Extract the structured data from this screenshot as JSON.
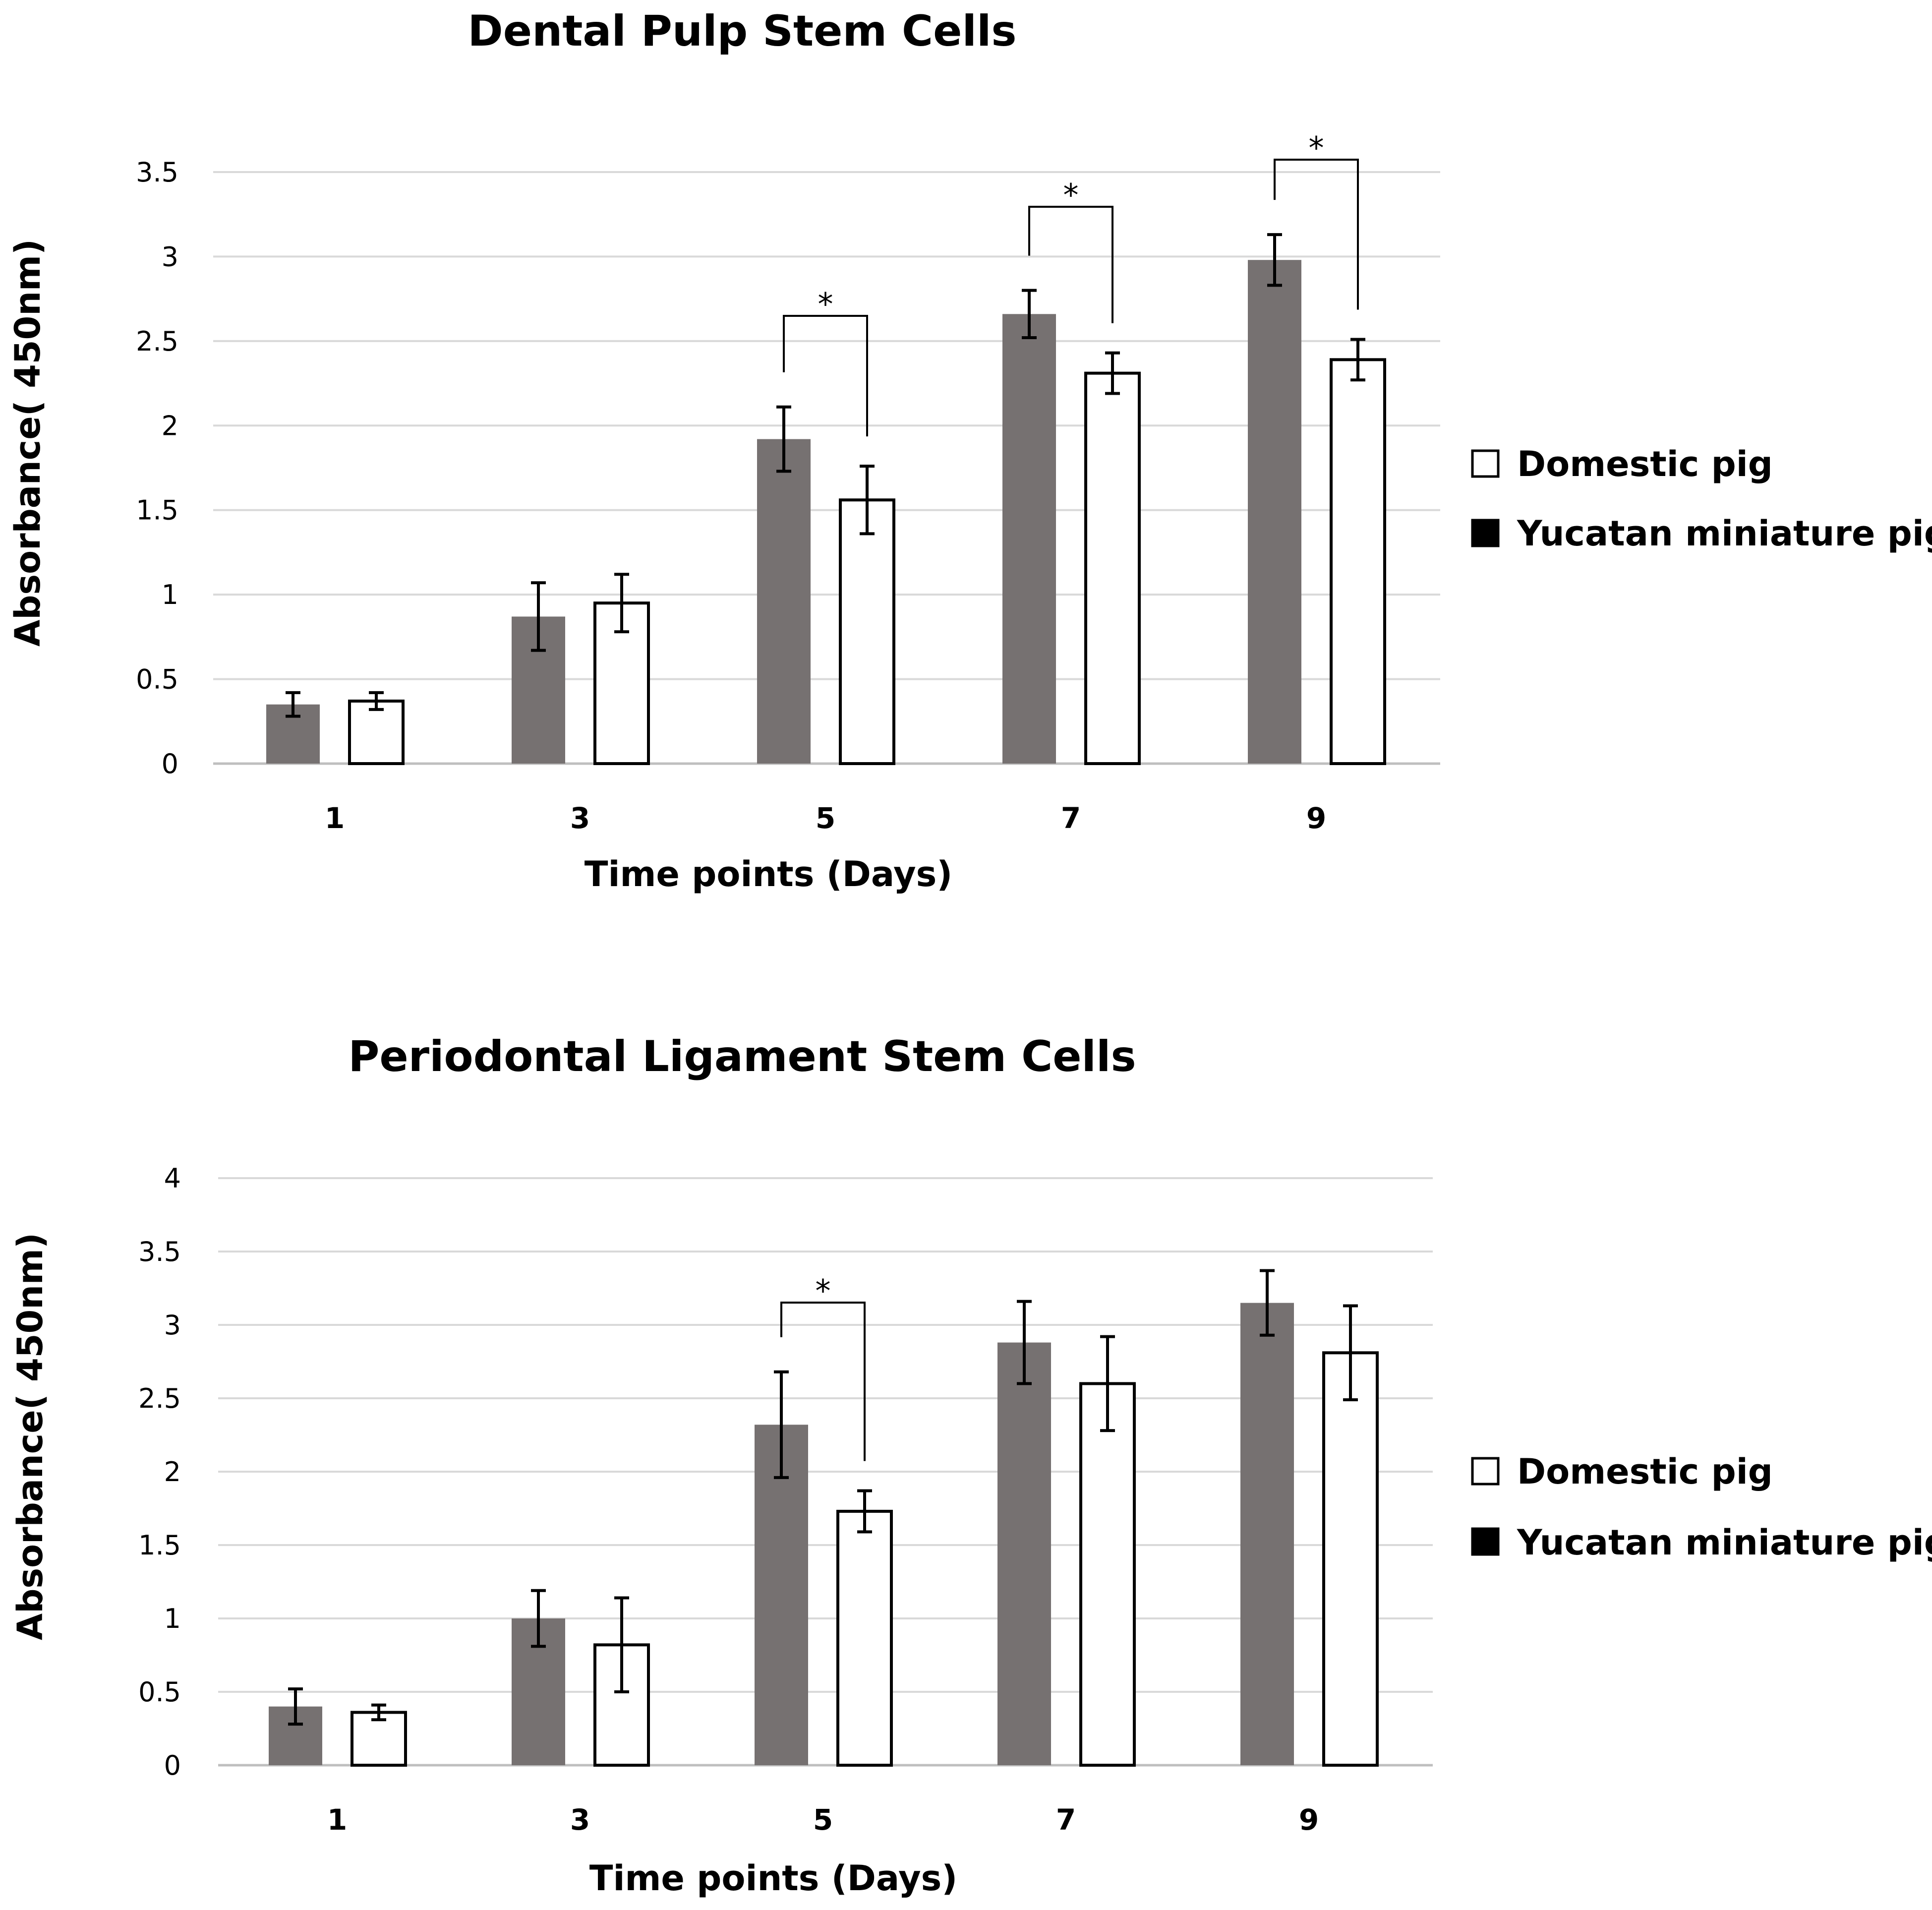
{
  "chart_data": [
    {
      "type": "bar",
      "title": "Dental Pulp Stem Cells",
      "xlabel": "Time points (Days)",
      "ylabel": "Absorbance( 450nm)",
      "categories": [
        "1",
        "3",
        "5",
        "7",
        "9"
      ],
      "ylim": [
        0,
        3.5
      ],
      "yticks": [
        0,
        0.5,
        1,
        1.5,
        2,
        2.5,
        3,
        3.5
      ],
      "ytick_labels": [
        "0",
        "0.5",
        "1",
        "1.5",
        "2",
        "2.5",
        "3",
        "3.5"
      ],
      "grid": true,
      "legend_position": "right",
      "series": [
        {
          "name": "Yucatan miniature pig",
          "color": "#767171",
          "values": [
            0.35,
            0.87,
            1.92,
            2.66,
            2.98
          ],
          "errors": [
            0.07,
            0.2,
            0.19,
            0.14,
            0.15
          ]
        },
        {
          "name": "Domestic pig",
          "color": "#ffffff",
          "values": [
            0.37,
            0.95,
            1.56,
            2.31,
            2.39
          ],
          "errors": [
            0.05,
            0.17,
            0.2,
            0.12,
            0.12
          ]
        }
      ],
      "legend": [
        "Domestic pig",
        "Yucatan miniature pig"
      ],
      "significance": [
        {
          "category": "5",
          "label": "*"
        },
        {
          "category": "7",
          "label": "*"
        },
        {
          "category": "9",
          "label": "*"
        }
      ]
    },
    {
      "type": "bar",
      "title": "Periodontal Ligament Stem Cells",
      "xlabel": "Time points (Days)",
      "ylabel": "Absorbance( 450nm)",
      "categories": [
        "1",
        "3",
        "5",
        "7",
        "9"
      ],
      "ylim": [
        0,
        4
      ],
      "yticks": [
        0,
        0.5,
        1,
        1.5,
        2,
        2.5,
        3,
        3.5,
        4
      ],
      "ytick_labels": [
        "0",
        "0.5",
        "1",
        "1.5",
        "2",
        "2.5",
        "3",
        "3.5",
        "4"
      ],
      "grid": true,
      "legend_position": "right",
      "series": [
        {
          "name": "Yucatan miniature pig",
          "color": "#767171",
          "values": [
            0.4,
            1.0,
            2.32,
            2.88,
            3.15
          ],
          "errors": [
            0.12,
            0.19,
            0.36,
            0.28,
            0.22
          ]
        },
        {
          "name": "Domestic pig",
          "color": "#ffffff",
          "values": [
            0.36,
            0.82,
            1.73,
            2.6,
            2.81
          ],
          "errors": [
            0.05,
            0.32,
            0.14,
            0.32,
            0.32
          ]
        }
      ],
      "legend": [
        "Domestic pig",
        "Yucatan miniature pig"
      ],
      "significance": [
        {
          "category": "5",
          "label": "*"
        }
      ]
    }
  ]
}
